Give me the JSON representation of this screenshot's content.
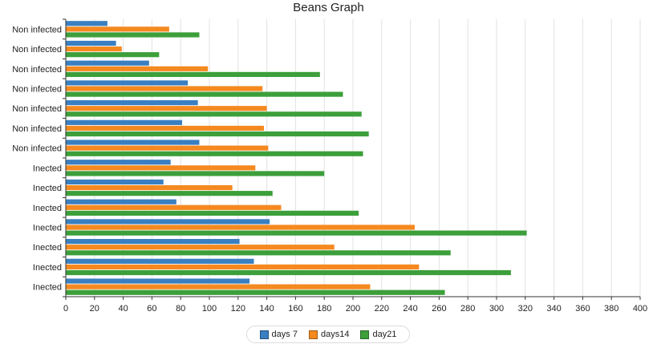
{
  "chart_data": {
    "type": "bar",
    "orientation": "horizontal",
    "title": "Beans Graph",
    "categories": [
      "Non infected",
      "Non infected",
      "Non infected",
      "Non infected",
      "Non infected",
      "Non infected",
      "Non infected",
      "Inected",
      "Inected",
      "Inected",
      "Inected",
      "Inected",
      "Inected",
      "Inected"
    ],
    "series": [
      {
        "name": "days 7",
        "color": "#3a7fc1",
        "values": [
          29,
          35,
          58,
          85,
          92,
          81,
          93,
          73,
          68,
          77,
          142,
          121,
          131,
          128
        ]
      },
      {
        "name": "days14",
        "color": "#f5891f",
        "values": [
          72,
          39,
          99,
          137,
          140,
          138,
          141,
          132,
          116,
          150,
          243,
          187,
          246,
          212
        ]
      },
      {
        "name": "day21",
        "color": "#3c9f3a",
        "values": [
          93,
          65,
          177,
          193,
          206,
          211,
          207,
          180,
          144,
          204,
          321,
          268,
          310,
          264
        ]
      }
    ],
    "xlim": [
      0,
      400
    ],
    "xticks": [
      0,
      20,
      40,
      60,
      80,
      100,
      120,
      140,
      160,
      180,
      200,
      220,
      240,
      260,
      280,
      300,
      320,
      340,
      360,
      380,
      400
    ],
    "grid": true,
    "legend_position": "bottom-center"
  }
}
